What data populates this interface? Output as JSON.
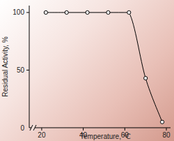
{
  "chart_data": {
    "type": "line",
    "x_label": "Temperature, ℃",
    "y_label": "Residual Activity, %",
    "x": [
      22,
      32,
      42,
      52,
      62,
      70,
      78
    ],
    "values": [
      100,
      100,
      100,
      100,
      100,
      43,
      5
    ],
    "xlim": [
      14,
      82
    ],
    "xticks": [
      20,
      40,
      60,
      80
    ],
    "ylim": [
      0,
      106
    ],
    "yticks": [
      0,
      50,
      100
    ],
    "marker": "circle",
    "color": "#000000"
  }
}
